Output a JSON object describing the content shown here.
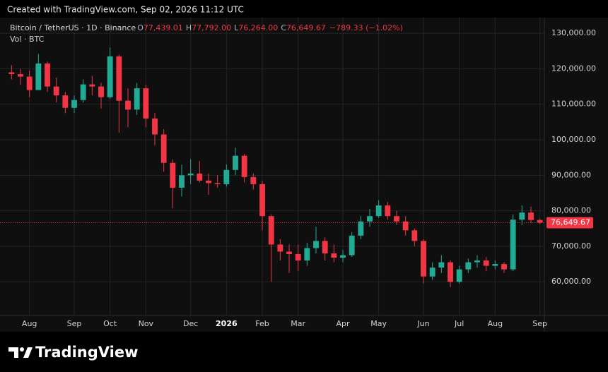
{
  "header": "Created with TradingView.com, Sep 02, 2026 11:12 UTC",
  "footer_logo": "TradingView",
  "chart_data": {
    "type": "candlestick",
    "symbol": "Bitcoin / TetherUS · 1D · Binance",
    "ohlc_legend": [
      {
        "key": "O",
        "text": "77,439.01"
      },
      {
        "key": "H",
        "text": "77,792.00"
      },
      {
        "key": "L",
        "text": "76,264.00"
      },
      {
        "key": "C",
        "text": "76,649.67"
      }
    ],
    "change": "−789.33 (−1.02%)",
    "volume_label": "Vol · BTC",
    "categories": [
      null,
      null,
      "Aug",
      null,
      null,
      null,
      null,
      "Sep",
      null,
      null,
      null,
      "Oct",
      null,
      null,
      null,
      "Nov",
      null,
      null,
      null,
      null,
      "Dec",
      null,
      null,
      null,
      "2026",
      null,
      null,
      null,
      "Feb",
      null,
      null,
      null,
      "Mar",
      null,
      null,
      null,
      null,
      "Apr",
      null,
      null,
      null,
      "May",
      null,
      null,
      null,
      null,
      "Jun",
      null,
      null,
      null,
      "Jul",
      null,
      null,
      null,
      "Aug",
      null,
      null,
      null,
      null,
      "Sep"
    ],
    "open": [
      119000,
      118500,
      117800,
      114000,
      121500,
      115000,
      112500,
      109000,
      111200,
      115600,
      115000,
      112000,
      123500,
      111000,
      108500,
      114500,
      106000,
      101500,
      93500,
      86500,
      90000,
      90500,
      88500,
      87800,
      87500,
      91500,
      95500,
      89500,
      87500,
      78500,
      70500,
      68500,
      67800,
      66000,
      69500,
      71500,
      68000,
      66800,
      67500,
      73000,
      77000,
      78500,
      81500,
      78500,
      77000,
      74500,
      71500,
      61500,
      64000,
      65500,
      60000,
      63500,
      65500,
      66000,
      64500,
      65000,
      63500,
      77500,
      79500,
      77400
    ],
    "high": [
      121000,
      120000,
      119500,
      124200,
      122000,
      117500,
      113500,
      112500,
      117000,
      118000,
      116000,
      126000,
      124000,
      114500,
      116000,
      115500,
      107500,
      103000,
      94500,
      93000,
      94500,
      94000,
      90500,
      90000,
      93000,
      97800,
      96000,
      90500,
      88500,
      79000,
      72000,
      70500,
      70500,
      71000,
      75500,
      72500,
      70500,
      69000,
      74000,
      78500,
      80500,
      83000,
      82500,
      80000,
      78500,
      75000,
      72000,
      65500,
      67500,
      66000,
      64500,
      66500,
      67500,
      67000,
      66000,
      65500,
      79000,
      81500,
      81200,
      77800
    ],
    "low": [
      117000,
      115500,
      112000,
      114000,
      113500,
      110500,
      107500,
      107500,
      110500,
      112500,
      108800,
      111500,
      102000,
      103500,
      107000,
      103500,
      98500,
      91000,
      80700,
      84000,
      87500,
      88000,
      84500,
      86500,
      86800,
      90000,
      88000,
      86000,
      74500,
      60000,
      66000,
      62500,
      63000,
      64500,
      68000,
      66000,
      65500,
      65500,
      67000,
      72000,
      75500,
      78000,
      77500,
      76000,
      73000,
      70000,
      59500,
      60500,
      62500,
      58500,
      59500,
      62500,
      64000,
      63000,
      63500,
      62500,
      63000,
      76000,
      76500,
      76264
    ],
    "close": [
      118500,
      117800,
      114000,
      121500,
      115000,
      112500,
      109000,
      111200,
      115600,
      115000,
      112000,
      123500,
      111000,
      108500,
      114500,
      106000,
      101500,
      93500,
      86500,
      90000,
      90500,
      88500,
      87800,
      87500,
      91500,
      95500,
      89500,
      87500,
      78500,
      70500,
      68500,
      67800,
      66000,
      69500,
      71500,
      68000,
      66800,
      67500,
      73000,
      77000,
      78500,
      81500,
      78500,
      77000,
      74500,
      71500,
      61500,
      64000,
      65500,
      60000,
      63500,
      65500,
      66000,
      64500,
      65000,
      63500,
      77500,
      79500,
      77400,
      76649.67
    ],
    "up_color": "#22ab94",
    "down_color": "#f23645",
    "ylim": [
      50500,
      134400
    ],
    "yticks": [
      {
        "value": 60000,
        "label": "60,000.00"
      },
      {
        "value": 70000,
        "label": "70,000.00"
      },
      {
        "value": 80000,
        "label": "80,000.00"
      },
      {
        "value": 90000,
        "label": "90,000.00"
      },
      {
        "value": 100000,
        "label": "100,000.00"
      },
      {
        "value": 110000,
        "label": "110,000.00"
      },
      {
        "value": 120000,
        "label": "120,000.00"
      },
      {
        "value": 130000,
        "label": "130,000.00"
      }
    ],
    "last_price": {
      "value": 76649.67,
      "label": "76,649.67"
    },
    "grid": true
  }
}
